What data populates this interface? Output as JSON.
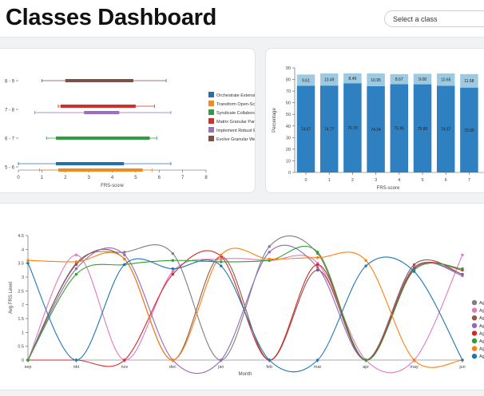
{
  "header": {
    "title": "Classes Dashboard",
    "select_value": "Select a class"
  },
  "chart_data": [
    {
      "type": "boxplot",
      "y_categories": [
        "8 - 9",
        "7 - 8",
        "6 - 7",
        "5 - 6"
      ],
      "xlabel": "FRS-score",
      "xlim": [
        0,
        8
      ],
      "x_ticks": [
        0,
        1,
        2,
        3,
        4,
        5,
        6,
        7,
        8
      ],
      "legend": [
        "Orchestrate Extensi",
        "Transform Open-Sc",
        "Syndicate Collabora",
        "Matrix Granular Par",
        "Implement Robust E",
        "Evolve Granular We"
      ],
      "series": [
        {
          "name": "Evolve Granular We",
          "color": "#7d5147",
          "category": "8 - 9",
          "whisker": [
            1.0,
            6.3
          ],
          "box": [
            2.0,
            4.9
          ]
        },
        {
          "name": "Matrix Granular Par",
          "color": "#cf2f2f",
          "category": "7 - 8",
          "whisker": [
            1.7,
            5.8
          ],
          "box": [
            1.8,
            5.0
          ]
        },
        {
          "name": "Implement Robust E",
          "color": "#9a6fbf",
          "category": "7 - 8",
          "whisker": [
            0.7,
            6.5
          ],
          "box": [
            2.8,
            4.3
          ]
        },
        {
          "name": "Syndicate Collabora",
          "color": "#2f9e3f",
          "category": "6 - 7",
          "whisker": [
            1.2,
            5.9
          ],
          "box": [
            1.6,
            5.6
          ]
        },
        {
          "name": "Orchestrate Extensi",
          "color": "#2470ad",
          "category": "5 - 6",
          "whisker": [
            0.0,
            6.5
          ],
          "box": [
            1.6,
            4.5
          ]
        },
        {
          "name": "Transform Open-Sc",
          "color": "#f28a1c",
          "category": "5 - 6",
          "whisker": [
            0.9,
            5.7
          ],
          "box": [
            1.7,
            5.3
          ]
        }
      ]
    },
    {
      "type": "stacked_bar",
      "categories": [
        0,
        1,
        2,
        3,
        4,
        5,
        6,
        7
      ],
      "xlabel": "FRS-score",
      "ylabel": "Percentage",
      "ylim": [
        0,
        90
      ],
      "y_ticks": [
        0,
        10,
        20,
        30,
        40,
        50,
        60,
        70,
        80,
        90
      ],
      "series": [
        {
          "name": "bottom",
          "color": "#2f80c0",
          "values": [
            74.67,
            74.77,
            76.79,
            74.24,
            75.95,
            75.86,
            74.57,
            73.05
          ]
        },
        {
          "name": "top",
          "color": "#9ecae1",
          "values": [
            9.61,
            10.49,
            8.49,
            10.95,
            8.67,
            9.08,
            10.65,
            11.58
          ]
        }
      ]
    },
    {
      "type": "line",
      "categories": [
        "sep",
        "okt",
        "nov",
        "dec",
        "jan",
        "feb",
        "mar",
        "apr",
        "may",
        "jun"
      ],
      "xlabel": "Month",
      "ylabel": "Avg FRS Level",
      "ylim": [
        0,
        4.5
      ],
      "y_ticks": [
        0,
        0.5,
        1,
        1.5,
        2,
        2.5,
        3,
        3.5,
        4,
        4.5
      ],
      "legend": [
        "Ag",
        "Ag",
        "Ag",
        "Ag",
        "Ag",
        "Ag",
        "Ag",
        "Ag"
      ],
      "series": [
        {
          "color": "#7f7f7f",
          "values": [
            0,
            3.5,
            3.9,
            3.85,
            0,
            4.1,
            3.85,
            0,
            3.35,
            3.1
          ]
        },
        {
          "color": "#e377c2",
          "values": [
            0,
            3.8,
            0,
            3.2,
            3.65,
            3.6,
            3.5,
            0,
            0,
            3.8
          ]
        },
        {
          "color": "#8c564b",
          "values": [
            0,
            3.45,
            3.65,
            0,
            3.75,
            0,
            3.25,
            0,
            3.45,
            3.1
          ]
        },
        {
          "color": "#9467bd",
          "values": [
            0,
            3.3,
            3.8,
            0,
            0,
            3.9,
            3.35,
            0,
            3.35,
            3.05
          ]
        },
        {
          "color": "#d62728",
          "values": [
            0,
            0,
            0,
            3.1,
            3.75,
            0,
            3.45,
            0,
            3.3,
            3.25
          ]
        },
        {
          "color": "#2ca02c",
          "values": [
            0,
            3.1,
            3.45,
            3.6,
            3.55,
            3.6,
            3.9,
            0,
            3.25,
            3.3
          ]
        },
        {
          "color": "#ff7f0e",
          "values": [
            3.6,
            3.55,
            3.65,
            0,
            3.8,
            3.65,
            3.7,
            3.6,
            0,
            0
          ]
        },
        {
          "color": "#1f77b4",
          "values": [
            3.5,
            0,
            3.45,
            3.3,
            3.4,
            0,
            0,
            3.4,
            3.2,
            0
          ]
        }
      ]
    }
  ]
}
